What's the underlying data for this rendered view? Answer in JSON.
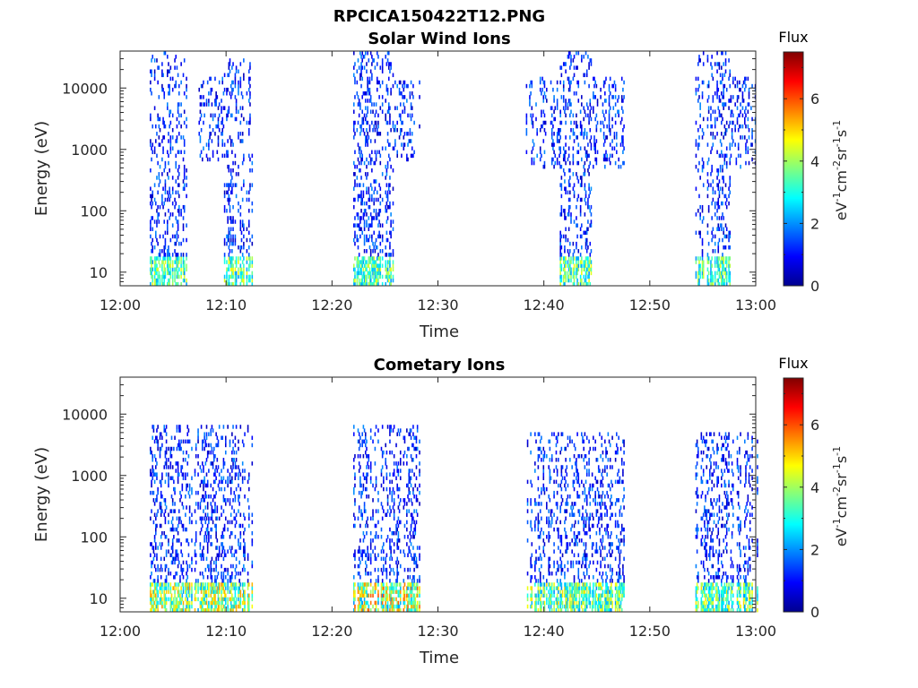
{
  "figure": {
    "title": "RPCICA150422T12.PNG"
  },
  "chart_data": [
    {
      "type": "heatmap",
      "title": "Solar Wind Ions",
      "xlabel": "Time",
      "ylabel": "Energy (eV)",
      "x_ticks": [
        "12:00",
        "12:10",
        "12:20",
        "12:30",
        "12:40",
        "12:50",
        "13:00"
      ],
      "x_range_minutes": [
        0,
        60
      ],
      "y_scale": "log",
      "y_range": [
        6,
        40000
      ],
      "y_ticks": [
        10,
        100,
        1000,
        10000
      ],
      "y_tick_labels": [
        "10",
        "100",
        "1000",
        "10000"
      ],
      "colorbar": {
        "title": "Flux",
        "unit": "eV",
        "range": [
          0,
          7.5
        ],
        "ticks": [
          0,
          2,
          4,
          6
        ],
        "tick_labels": [
          "0",
          "2",
          "4",
          "6"
        ],
        "colormap": "jet"
      },
      "bursts": [
        {
          "start": 2.7,
          "end": 6.2,
          "emin": 6,
          "emax": 38000,
          "peak": 2.5
        },
        {
          "start": 7.4,
          "end": 9.8,
          "emin": 700,
          "emax": 14000,
          "peak": 1.8
        },
        {
          "start": 9.8,
          "end": 12.4,
          "emin": 6,
          "emax": 30000,
          "peak": 2.8
        },
        {
          "start": 22.0,
          "end": 25.8,
          "emin": 6,
          "emax": 35000,
          "peak": 2.6
        },
        {
          "start": 25.8,
          "end": 28.4,
          "emin": 700,
          "emax": 12000,
          "peak": 1.8
        },
        {
          "start": 38.3,
          "end": 41.5,
          "emin": 500,
          "emax": 15000,
          "peak": 1.6
        },
        {
          "start": 41.5,
          "end": 44.6,
          "emin": 6,
          "emax": 35000,
          "peak": 2.6
        },
        {
          "start": 44.6,
          "end": 47.6,
          "emin": 500,
          "emax": 15000,
          "peak": 1.7
        },
        {
          "start": 54.3,
          "end": 57.6,
          "emin": 6,
          "emax": 35000,
          "peak": 2.5
        },
        {
          "start": 57.6,
          "end": 60.2,
          "emin": 500,
          "emax": 14000,
          "peak": 1.7
        }
      ]
    },
    {
      "type": "heatmap",
      "title": "Cometary Ions",
      "xlabel": "Time",
      "ylabel": "Energy (eV)",
      "x_ticks": [
        "12:00",
        "12:10",
        "12:20",
        "12:30",
        "12:40",
        "12:50",
        "13:00"
      ],
      "x_range_minutes": [
        0,
        60
      ],
      "y_scale": "log",
      "y_range": [
        6,
        40000
      ],
      "y_ticks": [
        10,
        100,
        1000,
        10000
      ],
      "y_tick_labels": [
        "10",
        "100",
        "1000",
        "10000"
      ],
      "colorbar": {
        "title": "Flux",
        "unit": "eV",
        "range": [
          0,
          7.5
        ],
        "ticks": [
          0,
          2,
          4,
          6
        ],
        "tick_labels": [
          "0",
          "2",
          "4",
          "6"
        ],
        "colormap": "jet"
      },
      "bursts": [
        {
          "start": 2.7,
          "end": 12.4,
          "emin": 6,
          "emax": 6000,
          "peak": 3.5
        },
        {
          "start": 22.0,
          "end": 28.4,
          "emin": 6,
          "emax": 6000,
          "peak": 4.0
        },
        {
          "start": 38.3,
          "end": 47.6,
          "emin": 6,
          "emax": 5000,
          "peak": 3.0
        },
        {
          "start": 54.3,
          "end": 60.2,
          "emin": 6,
          "emax": 5000,
          "peak": 3.0
        }
      ]
    }
  ]
}
